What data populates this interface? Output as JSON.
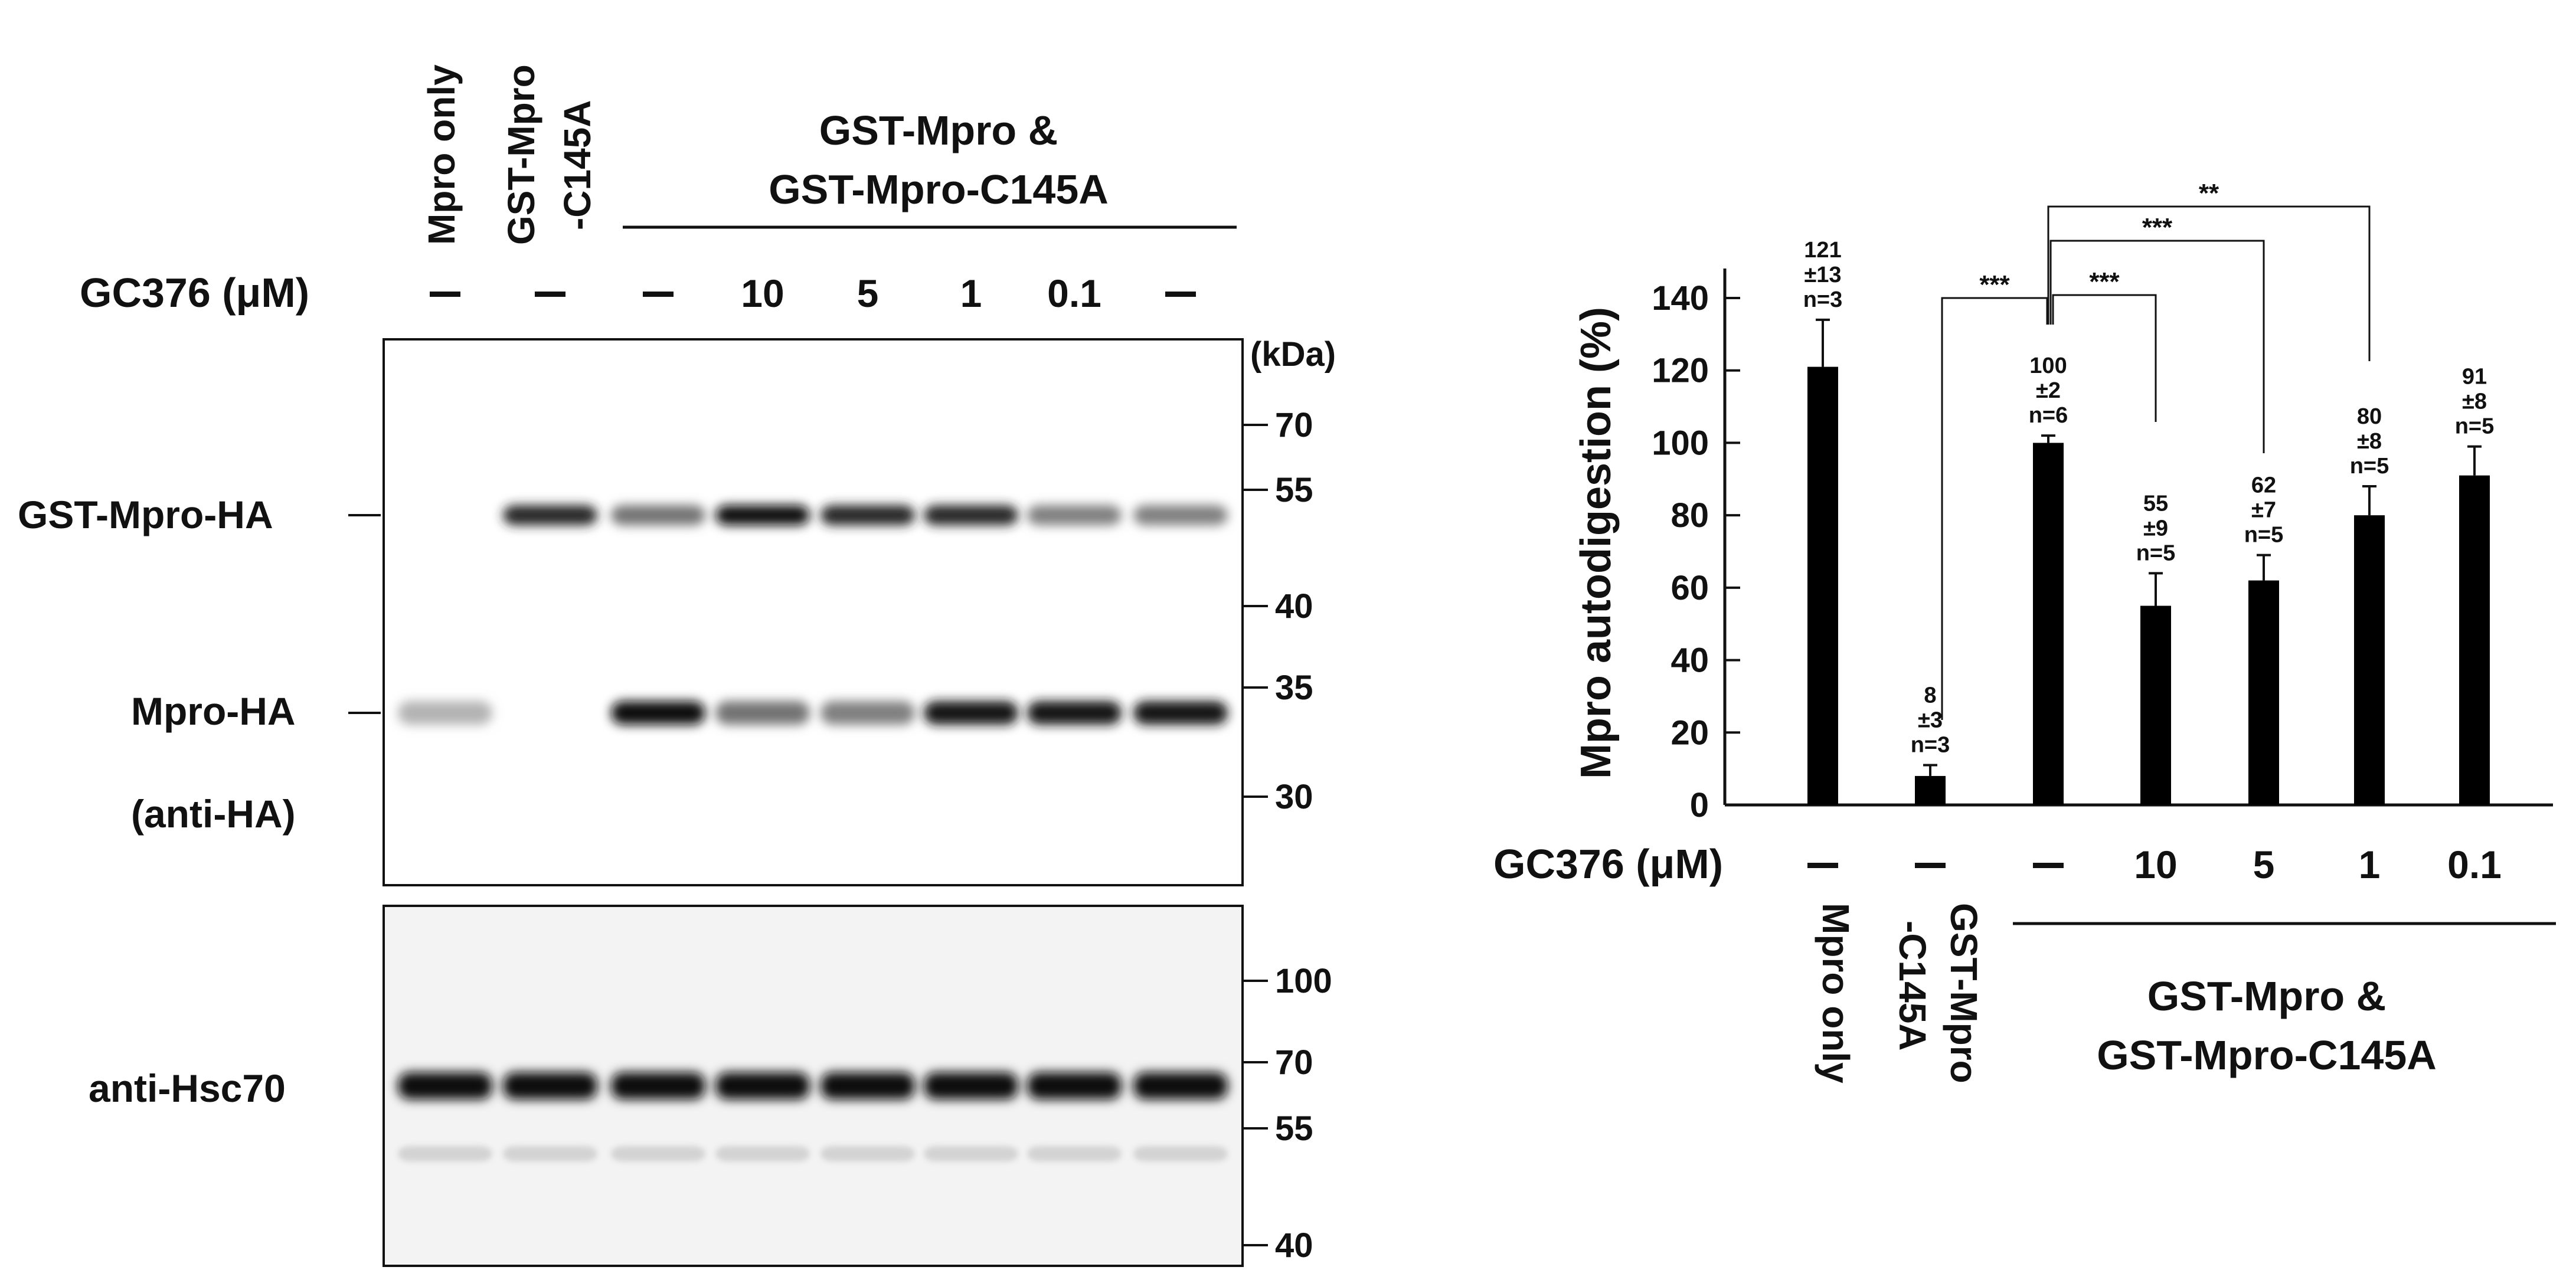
{
  "blot": {
    "lane_labels": [
      "Mpro only",
      "GST-Mpro\n-C145A"
    ],
    "group_label": [
      "GST-Mpro &",
      "GST-Mpro-C145A"
    ],
    "gc376_label": "GC376 (μM)",
    "gc376_values": [
      "–",
      "–",
      "–",
      "10",
      "5",
      "1",
      "0.1",
      "–"
    ],
    "kda_label": "(kDa)",
    "ha_markers": [
      "70",
      "55",
      "40",
      "35",
      "30"
    ],
    "hsc_markers": [
      "100",
      "70",
      "55",
      "40"
    ],
    "band_labels": {
      "gst_mpro_ha": "GST-Mpro-HA",
      "mpro_ha": "Mpro-HA",
      "anti_ha": "(anti-HA)",
      "anti_hsc70": "anti-Hsc70"
    },
    "gst_band_intensity": [
      0.0,
      0.85,
      0.55,
      0.95,
      0.85,
      0.85,
      0.5,
      0.5
    ],
    "mpro_band_intensity": [
      0.3,
      0.0,
      0.95,
      0.55,
      0.5,
      0.9,
      0.9,
      0.9
    ],
    "hsc_band_intensity": [
      0.95,
      0.95,
      0.95,
      0.95,
      0.95,
      0.95,
      0.95,
      0.95
    ]
  },
  "chart_data": {
    "type": "bar",
    "ylabel": "Mpro autodigestion (%)",
    "ylim": [
      0,
      140
    ],
    "yticks": [
      "0",
      "20",
      "40",
      "60",
      "80",
      "100",
      "120",
      "140"
    ],
    "categories": [
      "Mpro only",
      "GST-Mpro -C145A",
      "GST-Mpro & GST-Mpro-C145A",
      "10",
      "5",
      "1",
      "0.1"
    ],
    "values": [
      121,
      8,
      100,
      55,
      62,
      80,
      91
    ],
    "errors": [
      13,
      3,
      2,
      9,
      7,
      8,
      8
    ],
    "bar_annotations": [
      [
        "121",
        "±13",
        "n=3"
      ],
      [
        "8",
        "±3",
        "n=3"
      ],
      [
        "100",
        "±2",
        "n=6"
      ],
      [
        "55",
        "±9",
        "n=5"
      ],
      [
        "62",
        "±7",
        "n=5"
      ],
      [
        "80",
        "±8",
        "n=5"
      ],
      [
        "91",
        "±8",
        "n=5"
      ]
    ],
    "gc376_label": "GC376 (μM)",
    "gc376_values": [
      "–",
      "–",
      "–",
      "10",
      "5",
      "1",
      "0.1"
    ],
    "x_group_labels": [
      "Mpro only",
      "GST-Mpro\n-C145A"
    ],
    "group_label": [
      "GST-Mpro &",
      "GST-Mpro-C145A"
    ],
    "significance": [
      {
        "from": 1,
        "to": 2,
        "label": "***"
      },
      {
        "from": 2,
        "to": 3,
        "label": "***"
      },
      {
        "from": 2,
        "to": 4,
        "label": "***"
      },
      {
        "from": 2,
        "to": 5,
        "label": "**"
      }
    ],
    "bar_color": "#000000"
  }
}
